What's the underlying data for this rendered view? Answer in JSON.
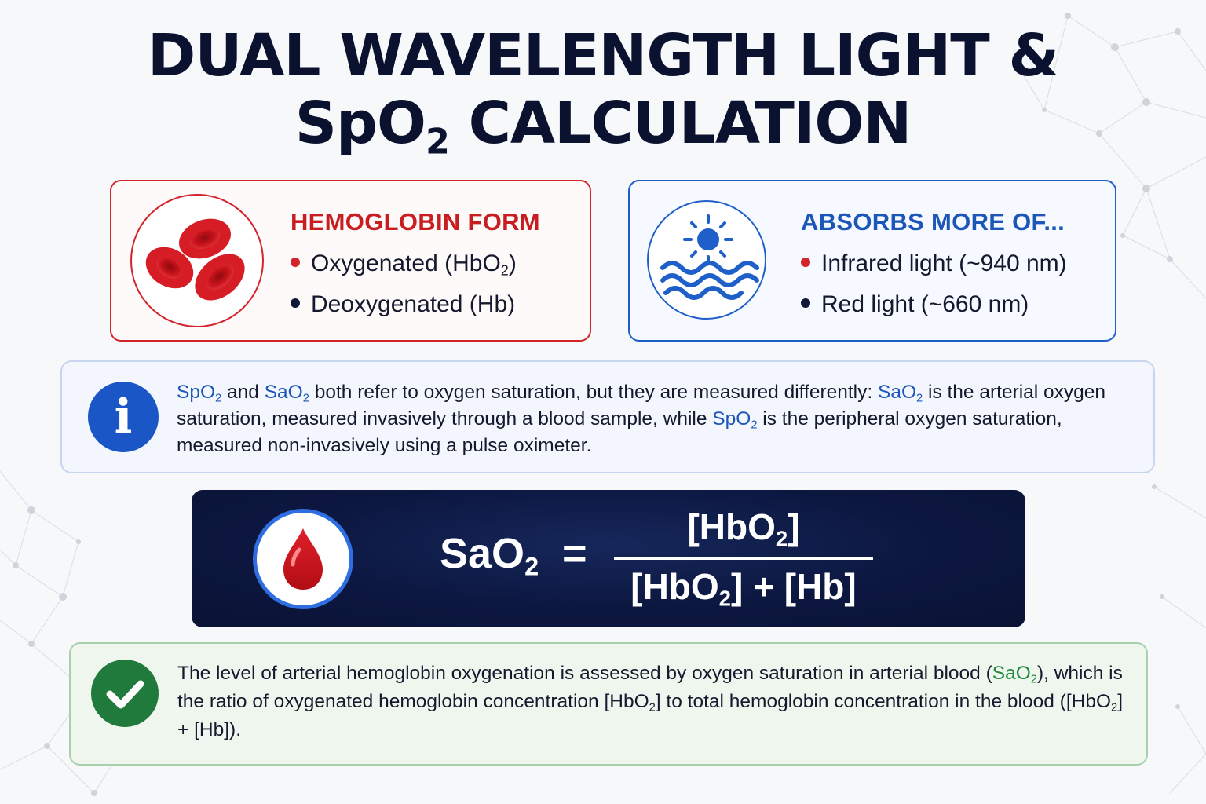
{
  "title": {
    "line1": "DUAL WAVELENGTH LIGHT &",
    "line2_pre": "SpO",
    "line2_sub": "2",
    "line2_post": " CALCULATION"
  },
  "hemoglobin_card": {
    "heading": "HEMOGLOBIN FORM",
    "icon": "red-blood-cells-icon",
    "items": [
      {
        "pre": "Oxygenated (HbO",
        "sub": "2",
        "post": ")"
      },
      {
        "pre": "Deoxygenated (Hb)",
        "sub": "",
        "post": ""
      }
    ]
  },
  "absorbs_card": {
    "heading": "ABSORBS MORE OF...",
    "icon": "sun-waves-icon",
    "items": [
      "Infrared light (~940 nm)",
      "Red light (~660 nm)"
    ]
  },
  "info_card": {
    "icon": "info-icon",
    "t1": "SpO",
    "t1s": "2",
    "t2": " and ",
    "t3": "SaO",
    "t3s": "2",
    "t4": " both refer to oxygen saturation, but they are measured differently: ",
    "t5": "SaO",
    "t5s": "2",
    "t6": " is the arterial oxygen saturation, measured invasively through a blood sample, while ",
    "t7": "SpO",
    "t7s": "2",
    "t8": " is the peripheral oxygen saturation, measured non-invasively using a pulse oximeter."
  },
  "formula": {
    "icon": "blood-drop-icon",
    "lhs": "SaO",
    "lhs_sub": "2",
    "equals": "=",
    "num_pre": "[HbO",
    "num_sub": "2",
    "num_post": "]",
    "den_pre": "[HbO",
    "den_sub": "2",
    "den_post": "] + [Hb]"
  },
  "check_card": {
    "icon": "checkmark-icon",
    "t1": "The level of arterial hemoglobin oxygenation is assessed by oxygen saturation in arterial blood (",
    "t2": "SaO",
    "t2s": "2",
    "t3": "), which is the ratio of oxygenated hemoglobin concentration [HbO",
    "t3s": "2",
    "t4": "] to total hemoglobin concentration in the blood ([HbO",
    "t4s": "2",
    "t5": "] + [Hb])."
  },
  "colors": {
    "title": "#0b1230",
    "red_accent": "#d3232b",
    "blue_accent": "#1c56b8",
    "navy_panel": "#0c1740",
    "green_accent": "#1f7a3b"
  }
}
